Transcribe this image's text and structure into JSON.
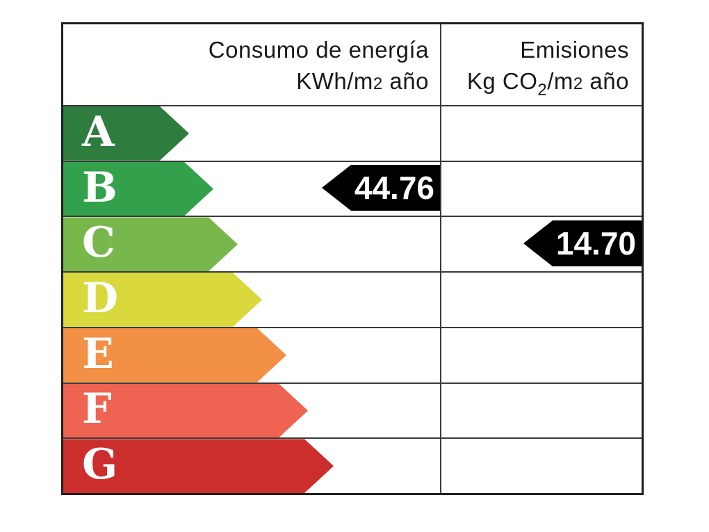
{
  "chart_data": {
    "type": "table",
    "title": "Energy efficiency rating label (Spanish energy certificate)",
    "columns": [
      "Consumo de energía KWh/m2 año",
      "Emisiones Kg CO2/m2 año"
    ],
    "categories": [
      "A",
      "B",
      "C",
      "D",
      "E",
      "F",
      "G"
    ],
    "consumption": {
      "rating": "B",
      "value": 44.76,
      "unit": "KWh/m2 año"
    },
    "emissions": {
      "rating": "C",
      "value": 14.7,
      "unit": "Kg CO2/m2 año"
    },
    "legend_position": "none",
    "grid": true
  },
  "header": {
    "consumption_line1": "Consumo de energía",
    "consumption_line2_pre": "KWh/m",
    "consumption_line2_exp": "2",
    "consumption_line2_post": " año",
    "emissions_line1": "Emisiones",
    "emissions_line2_pre": "Kg CO",
    "emissions_line2_sub": "2",
    "emissions_line2_mid": "/m",
    "emissions_line2_exp": "2",
    "emissions_line2_post": " año"
  },
  "ratings": [
    {
      "letter": "A",
      "color": "#2e7d3e"
    },
    {
      "letter": "B",
      "color": "#33a14b"
    },
    {
      "letter": "C",
      "color": "#78b74c"
    },
    {
      "letter": "D",
      "color": "#d9d93d"
    },
    {
      "letter": "E",
      "color": "#f29046"
    },
    {
      "letter": "F",
      "color": "#ee6351"
    },
    {
      "letter": "G",
      "color": "#cc2d2d"
    }
  ],
  "values": {
    "consumption": {
      "value": "44.76",
      "row_letter": "B"
    },
    "emissions": {
      "value": "14.70",
      "row_letter": "C"
    }
  },
  "colors": {
    "indicator_background": "#000000",
    "indicator_text": "#ffffff",
    "grid_line": "#3a3a3a",
    "outer_border": "#1f1f1f",
    "header_text": "#1a1a1a"
  }
}
